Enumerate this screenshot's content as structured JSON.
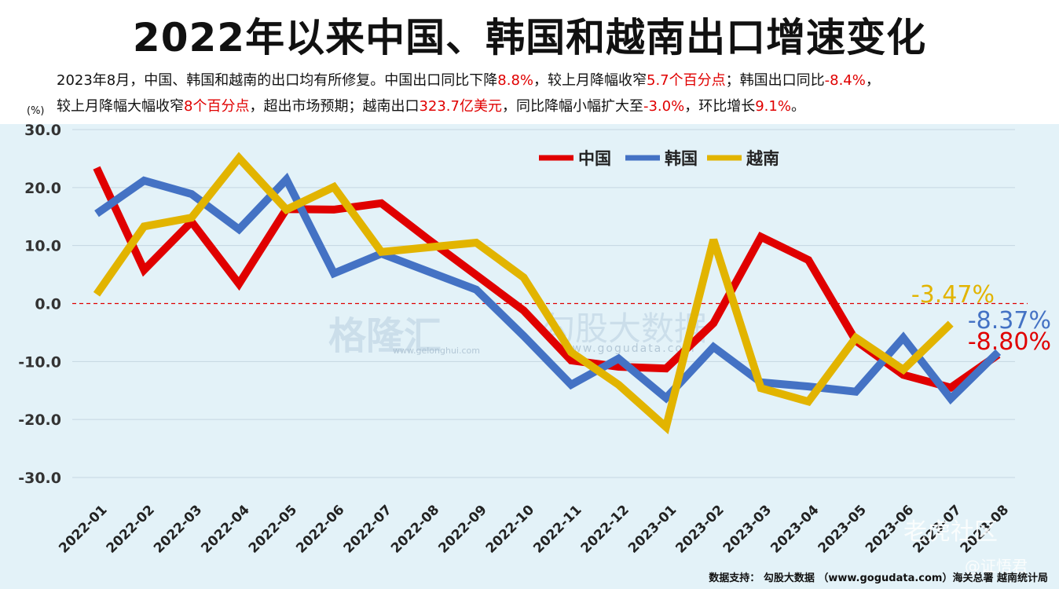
{
  "title": "2022年以来中国、韩国和越南出口增速变化",
  "subtitle": {
    "line1": [
      {
        "t": "2023年8月，中国、韩国和越南的出口均有所修复。中国出口同比下降",
        "red": false
      },
      {
        "t": "8.8%",
        "red": true
      },
      {
        "t": "，较上月降幅收窄",
        "red": false
      },
      {
        "t": "5.7个百分点",
        "red": true
      },
      {
        "t": "；韩国出口同比",
        "red": false
      },
      {
        "t": "-8.4%",
        "red": true
      },
      {
        "t": "，",
        "red": false
      }
    ],
    "line2": [
      {
        "t": "较上月降幅大幅收窄",
        "red": false
      },
      {
        "t": "8个百分点",
        "red": true
      },
      {
        "t": "，超出市场预期；越南出口",
        "red": false
      },
      {
        "t": "323.7亿美元",
        "red": true
      },
      {
        "t": "，同比降幅小幅扩大至",
        "red": false
      },
      {
        "t": "-3.0%",
        "red": true
      },
      {
        "t": "，环比增长",
        "red": false
      },
      {
        "t": "9.1%",
        "red": true
      },
      {
        "t": "。",
        "red": false
      }
    ]
  },
  "source": "数据支持：  勾股大数据  （www.gogudata.com）海关总署  越南统计局",
  "watermarks": {
    "w1": "格隆汇",
    "w1sub": "www.gelonghui.com",
    "w2": "勾股大数据",
    "w2sub": "www.gogudata.com",
    "w3": "老虎社区",
    "w4": "@证悟君"
  },
  "chart_data": {
    "type": "line",
    "ylabel": "(%)",
    "ylim": [
      -30,
      30
    ],
    "yticks": [
      "30.0",
      "20.0",
      "10.0",
      "0.0",
      "-10.0",
      "-20.0",
      "-30.0"
    ],
    "grid": true,
    "legend_position": "top-right",
    "categories": [
      "2022-01",
      "2022-02",
      "2022-03",
      "2022-04",
      "2022-05",
      "2022-06",
      "2022-07",
      "2022-08",
      "2022-09",
      "2022-10",
      "2022-11",
      "2022-12",
      "2023-01",
      "2023-02",
      "2023-03",
      "2023-04",
      "2023-05",
      "2023-06",
      "2023-07",
      "2023-08"
    ],
    "series": [
      {
        "name": "中国",
        "color": "#e00000",
        "values": [
          23.4,
          5.8,
          14.1,
          3.4,
          16.3,
          16.2,
          17.3,
          11.0,
          4.9,
          -1.2,
          -9.8,
          -10.9,
          -11.2,
          -3.4,
          11.5,
          7.5,
          -6.4,
          -12.3,
          -14.5,
          -8.8
        ],
        "end_label": "-8.80%"
      },
      {
        "name": "韩国",
        "color": "#4472c4",
        "values": [
          15.5,
          21.2,
          18.9,
          12.8,
          21.4,
          5.2,
          8.6,
          5.5,
          2.4,
          -5.6,
          -14.0,
          -9.5,
          -16.3,
          -7.5,
          -13.6,
          -14.3,
          -15.2,
          -5.9,
          -16.4,
          -8.37
        ],
        "end_label": "-8.37%"
      },
      {
        "name": "越南",
        "color": "#e2b400",
        "values": [
          1.6,
          13.3,
          14.8,
          25.1,
          16.2,
          20.1,
          8.9,
          9.7,
          10.5,
          4.5,
          -8.4,
          -14.0,
          -21.3,
          11.0,
          -14.6,
          -16.9,
          -5.9,
          -11.4,
          -3.47,
          null
        ],
        "end_label": "-3.47%"
      }
    ]
  }
}
